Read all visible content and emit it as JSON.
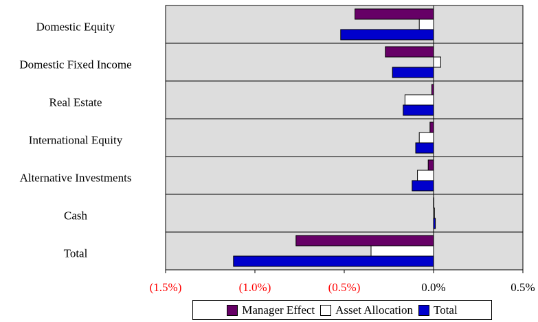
{
  "chart_data": {
    "type": "bar",
    "orientation": "horizontal",
    "categories": [
      "Domestic Equity",
      "Domestic Fixed Income",
      "Real Estate",
      "International Equity",
      "Alternative Investments",
      "Cash",
      "Total"
    ],
    "series": [
      {
        "name": "Manager Effect",
        "color": "#660066",
        "values": [
          -0.44,
          -0.27,
          -0.01,
          -0.02,
          -0.03,
          0.0,
          -0.77
        ]
      },
      {
        "name": "Asset Allocation",
        "color": "#ffffff",
        "values": [
          -0.08,
          0.04,
          -0.16,
          -0.08,
          -0.09,
          0.005,
          -0.35
        ]
      },
      {
        "name": "Total",
        "color": "#0000cc",
        "values": [
          -0.52,
          -0.23,
          -0.17,
          -0.1,
          -0.12,
          0.01,
          -1.12
        ]
      }
    ],
    "xlim": [
      -1.5,
      0.5
    ],
    "xticks": [
      {
        "value": -1.5,
        "label": "(1.5%)"
      },
      {
        "value": -1.0,
        "label": "(1.0%)"
      },
      {
        "value": -0.5,
        "label": "(0.5%)"
      },
      {
        "value": 0.0,
        "label": "0.0%"
      },
      {
        "value": 0.5,
        "label": "0.5%"
      }
    ],
    "legend": "bottom"
  }
}
